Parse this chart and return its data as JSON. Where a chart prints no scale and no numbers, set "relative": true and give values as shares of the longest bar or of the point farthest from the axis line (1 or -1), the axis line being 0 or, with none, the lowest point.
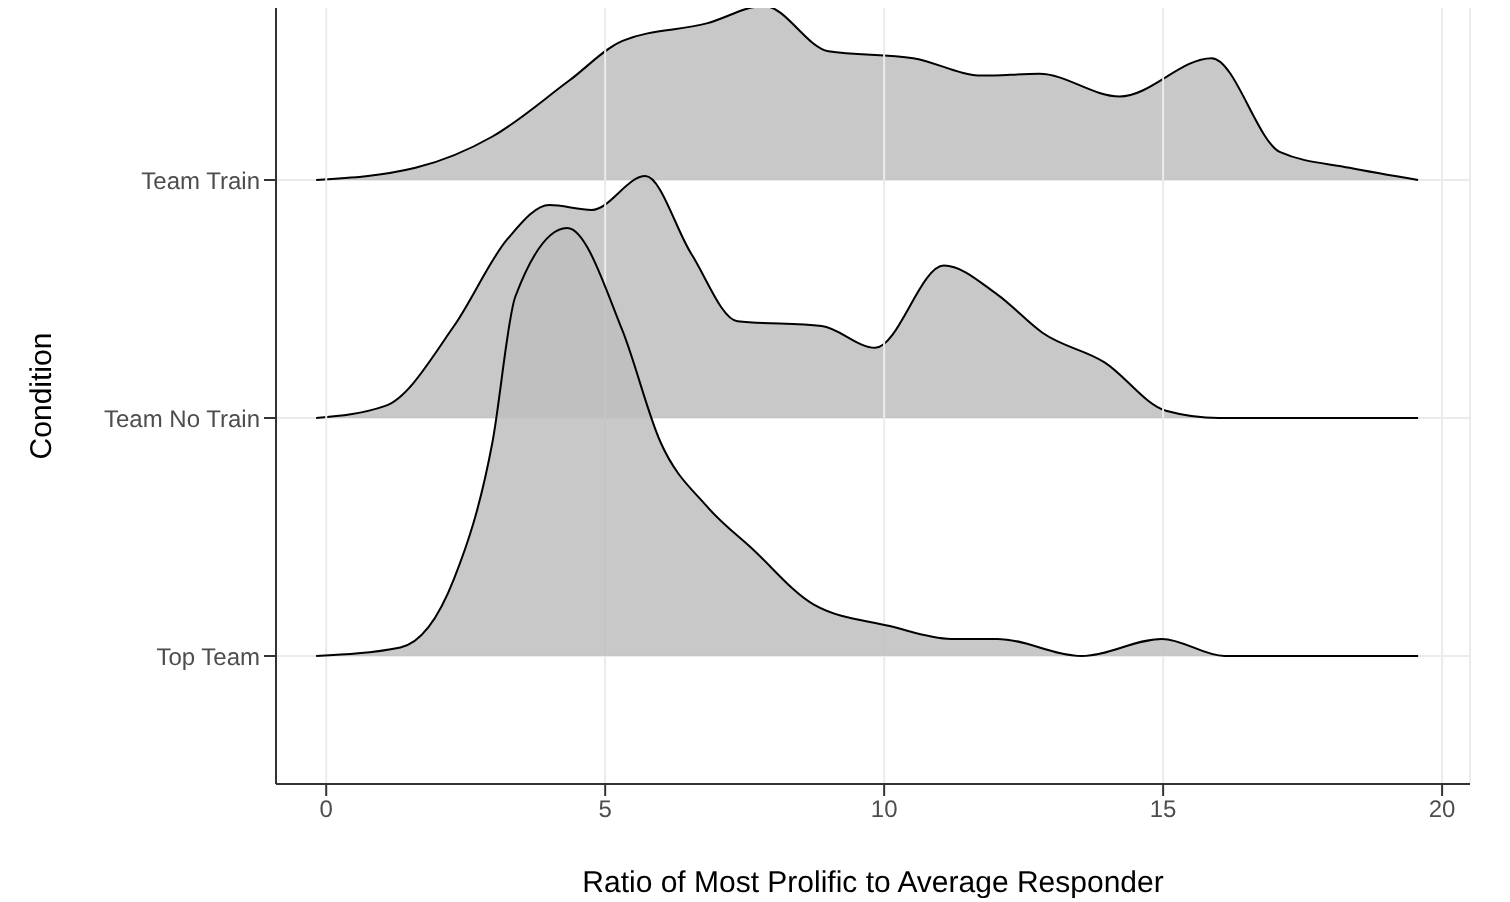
{
  "chart_data": [
    {
      "type": "area",
      "relative": true,
      "xlim": [
        -0.9,
        20.5
      ],
      "xticks": [
        0,
        5,
        10,
        15,
        20
      ],
      "tick_labels": "y",
      "grid": true,
      "series": [
        {
          "name": "Team Train",
          "color": "#bebebe",
          "x": [
            -0.18,
            1.6,
            2.98,
            4.35,
            5.31,
            6.82,
            7.85,
            9.0,
            10.52,
            11.76,
            12.78,
            14.22,
            15.87,
            17.1,
            18.34,
            19.57
          ],
          "values": [
            0,
            0.07,
            0.25,
            0.57,
            0.8,
            0.9,
            1,
            0.74,
            0.7,
            0.6,
            0.61,
            0.48,
            0.7,
            0.16,
            0.07,
            0
          ]
        }
      ]
    },
    {
      "type": "area",
      "relative": true,
      "xlim": [
        -0.9,
        20.5
      ],
      "xticks": [
        0,
        5,
        10,
        15,
        20
      ],
      "tick_labels": "y",
      "grid": true,
      "series": [
        {
          "name": "Team No Train",
          "color": "#bebebe",
          "x": [
            -0.18,
            1.06,
            2.29,
            3.25,
            4.0,
            4.76,
            5.72,
            6.54,
            7.37,
            8.88,
            9.84,
            11.07,
            12.03,
            12.85,
            13.95,
            15.05,
            16.0,
            19.57
          ],
          "values": [
            0,
            0.05,
            0.38,
            0.74,
            0.88,
            0.86,
            1,
            0.68,
            0.4,
            0.38,
            0.29,
            0.63,
            0.51,
            0.35,
            0.23,
            0.03,
            0,
            0
          ]
        }
      ]
    },
    {
      "type": "area",
      "relative": true,
      "xlabel": "Ratio of Most Prolific to Average Responder",
      "ylabel": "Condition",
      "xlim": [
        -0.9,
        20.5
      ],
      "xticks": [
        0,
        5,
        10,
        15,
        20
      ],
      "grid": true,
      "series": [
        {
          "name": "Top Team",
          "color": "#bebebe",
          "x": [
            -0.18,
            1.33,
            2.29,
            2.98,
            3.39,
            4.32,
            5.31,
            5.99,
            6.82,
            7.64,
            8.74,
            10.1,
            11.2,
            12.03,
            13.54,
            14.98,
            16.1,
            19.57
          ],
          "values": [
            0,
            0.02,
            0.18,
            0.5,
            0.84,
            1,
            0.76,
            0.5,
            0.35,
            0.25,
            0.12,
            0.07,
            0.04,
            0.04,
            0,
            0.04,
            0,
            0
          ]
        }
      ]
    }
  ]
}
